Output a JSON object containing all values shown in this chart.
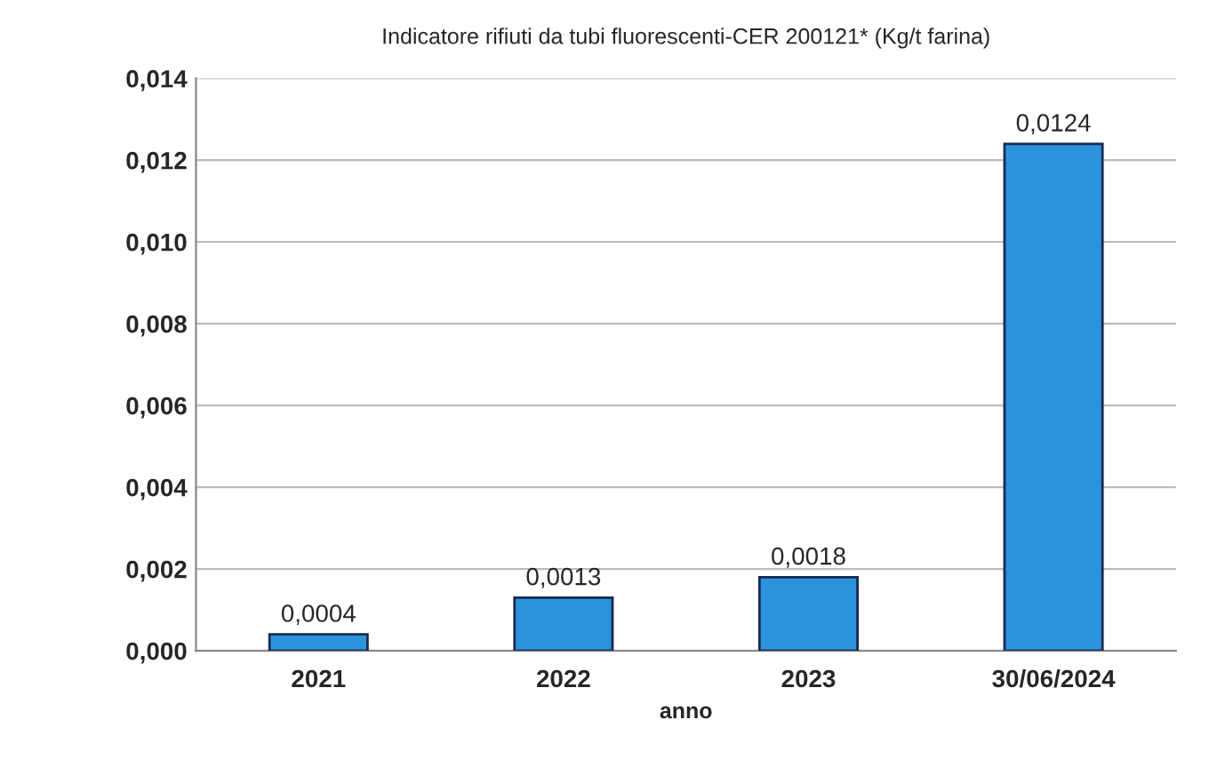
{
  "chart_data": {
    "type": "bar",
    "title": "Indicatore rifiuti da tubi fluorescenti-CER 200121* (Kg/t farina)",
    "xlabel": "anno",
    "categories": [
      "2021",
      "2022",
      "2023",
      "30/06/2024"
    ],
    "values": [
      0.0004,
      0.0013,
      0.0018,
      0.0124
    ],
    "value_labels": [
      "0,0004",
      "0,0013",
      "0,0018",
      "0,0124"
    ],
    "color": "#2a93dc",
    "ylim": [
      0,
      0.014
    ],
    "yticks": [
      {
        "value": 0,
        "label": "0,000"
      },
      {
        "value": 0.002,
        "label": "0,002"
      },
      {
        "value": 0.004,
        "label": "0,004"
      },
      {
        "value": 0.006,
        "label": "0,006"
      },
      {
        "value": 0.008,
        "label": "0,008"
      },
      {
        "value": 0.01,
        "label": "0,010"
      },
      {
        "value": 0.012,
        "label": "0,012"
      },
      {
        "value": 0.014,
        "label": "0,014"
      }
    ],
    "grid": "y"
  }
}
